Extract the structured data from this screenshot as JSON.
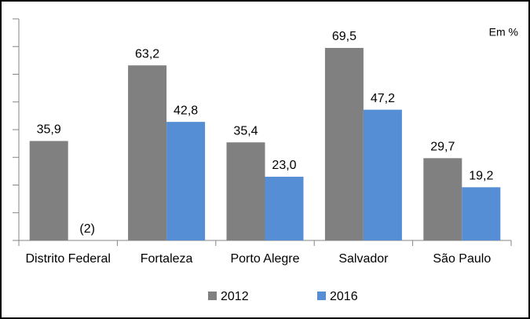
{
  "chart_data": {
    "type": "bar",
    "annotation": "Em %",
    "categories": [
      "Distrito Federal",
      "Fortaleza",
      "Porto Alegre",
      "Salvador",
      "São Paulo"
    ],
    "series": [
      {
        "name": "2012",
        "color": "#808080",
        "values": [
          35.9,
          63.2,
          35.4,
          69.5,
          29.7
        ],
        "value_labels": [
          "35,9",
          "63,2",
          "35,4",
          "69,5",
          "29,7"
        ]
      },
      {
        "name": "2016",
        "color": "#558ed5",
        "values": [
          null,
          42.8,
          23.0,
          47.2,
          19.2
        ],
        "value_labels": [
          "(2)",
          "42,8",
          "23,0",
          "47,2",
          "19,2"
        ]
      }
    ],
    "ylim": [
      0,
      80
    ],
    "yticks": [
      0,
      10,
      20,
      30,
      40,
      50,
      60,
      70,
      80
    ],
    "legend": "bottom"
  }
}
